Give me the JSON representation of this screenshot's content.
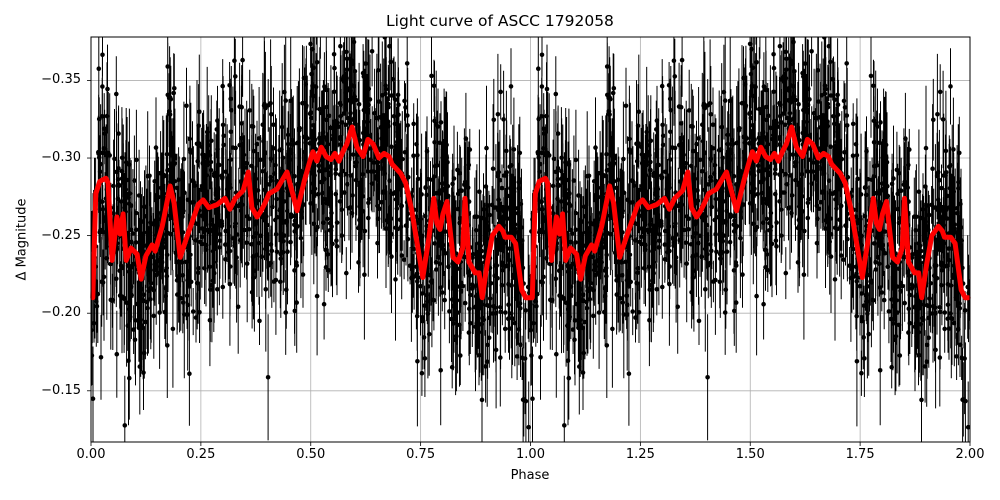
{
  "title": "Light curve of ASCC 1792058",
  "xlabel": "Phase",
  "ylabel": "Δ Magnitude",
  "axes": {
    "xlim": [
      0.0,
      2.0
    ],
    "ylim": [
      -0.117,
      -0.378
    ],
    "y_inverted": true,
    "grid": true,
    "xticks": [
      {
        "value": 0.0,
        "label": "0.00"
      },
      {
        "value": 0.25,
        "label": "0.25"
      },
      {
        "value": 0.5,
        "label": "0.50"
      },
      {
        "value": 0.75,
        "label": "0.75"
      },
      {
        "value": 1.0,
        "label": "1.00"
      },
      {
        "value": 1.25,
        "label": "1.25"
      },
      {
        "value": 1.5,
        "label": "1.50"
      },
      {
        "value": 1.75,
        "label": "1.75"
      },
      {
        "value": 2.0,
        "label": "2.00"
      }
    ],
    "yticks": [
      {
        "value": -0.35,
        "label": "−0.35"
      },
      {
        "value": -0.3,
        "label": "−0.30"
      },
      {
        "value": -0.25,
        "label": "−0.25"
      },
      {
        "value": -0.2,
        "label": "−0.20"
      },
      {
        "value": -0.15,
        "label": "−0.15"
      }
    ]
  },
  "colors": {
    "data_points": "#000000",
    "binned_curve": "#ff0000",
    "grid": "#b0b0b0",
    "frame": "#000000"
  },
  "chart_data": {
    "type": "scatter",
    "title": "Light curve of ASCC 1792058",
    "xlabel": "Phase",
    "ylabel": "Δ Magnitude",
    "xlim": [
      0.0,
      2.0
    ],
    "ylim": [
      -0.117,
      -0.378
    ],
    "grid": true,
    "legend": null,
    "series": [
      {
        "name": "observations (with error bars)",
        "style": "black points with vertical error bars",
        "description": "Dense scatter of several thousand points spanning Δmag ≈ -0.12 to -0.38, phase-folded and repeated over two cycles; error bars typically ±0.02–0.05 mag.",
        "envelope": {
          "phase": [
            0.0,
            0.1,
            0.2,
            0.3,
            0.4,
            0.5,
            0.6,
            0.7,
            0.8,
            0.9,
            1.0
          ],
          "upper_mag": [
            -0.37,
            -0.34,
            -0.34,
            -0.35,
            -0.37,
            -0.38,
            -0.38,
            -0.37,
            -0.36,
            -0.35,
            -0.37
          ],
          "lower_mag": [
            -0.12,
            -0.13,
            -0.14,
            -0.15,
            -0.19,
            -0.21,
            -0.18,
            -0.14,
            -0.12,
            -0.12,
            -0.12
          ]
        }
      },
      {
        "name": "binned curve",
        "style": "thick red line",
        "phase": [
          0.004,
          0.011,
          0.02,
          0.034,
          0.039,
          0.048,
          0.059,
          0.066,
          0.073,
          0.08,
          0.091,
          0.105,
          0.114,
          0.125,
          0.139,
          0.146,
          0.162,
          0.171,
          0.18,
          0.189,
          0.203,
          0.218,
          0.244,
          0.255,
          0.268,
          0.287,
          0.305,
          0.316,
          0.328,
          0.346,
          0.358,
          0.366,
          0.378,
          0.387,
          0.396,
          0.405,
          0.423,
          0.446,
          0.469,
          0.485,
          0.498,
          0.505,
          0.514,
          0.524,
          0.535,
          0.546,
          0.555,
          0.564,
          0.573,
          0.582,
          0.594,
          0.605,
          0.619,
          0.63,
          0.642,
          0.655,
          0.667,
          0.678,
          0.685,
          0.705,
          0.716,
          0.73,
          0.755,
          0.769,
          0.78,
          0.787,
          0.794,
          0.801,
          0.81,
          0.824,
          0.835,
          0.846,
          0.851,
          0.86,
          0.874,
          0.883,
          0.89,
          0.901,
          0.913,
          0.928,
          0.937,
          0.942,
          0.956,
          0.966,
          0.98,
          0.989,
          0.996
        ],
        "magnitude": [
          -0.21,
          -0.277,
          -0.285,
          -0.287,
          -0.284,
          -0.234,
          -0.262,
          -0.251,
          -0.264,
          -0.234,
          -0.242,
          -0.238,
          -0.222,
          -0.237,
          -0.244,
          -0.24,
          -0.256,
          -0.269,
          -0.282,
          -0.271,
          -0.236,
          -0.249,
          -0.27,
          -0.273,
          -0.268,
          -0.27,
          -0.274,
          -0.267,
          -0.274,
          -0.279,
          -0.291,
          -0.268,
          -0.262,
          -0.266,
          -0.271,
          -0.277,
          -0.28,
          -0.291,
          -0.266,
          -0.285,
          -0.298,
          -0.304,
          -0.298,
          -0.307,
          -0.301,
          -0.299,
          -0.303,
          -0.298,
          -0.304,
          -0.309,
          -0.32,
          -0.307,
          -0.301,
          -0.312,
          -0.309,
          -0.3,
          -0.303,
          -0.301,
          -0.296,
          -0.29,
          -0.284,
          -0.266,
          -0.223,
          -0.249,
          -0.274,
          -0.258,
          -0.254,
          -0.264,
          -0.272,
          -0.236,
          -0.233,
          -0.242,
          -0.274,
          -0.233,
          -0.226,
          -0.226,
          -0.21,
          -0.231,
          -0.25,
          -0.256,
          -0.253,
          -0.249,
          -0.249,
          -0.245,
          -0.215,
          -0.21,
          -0.21
        ]
      }
    ],
    "notes": "Data are phase-folded and plotted twice (phase 0–1 repeated at 1–2)."
  }
}
